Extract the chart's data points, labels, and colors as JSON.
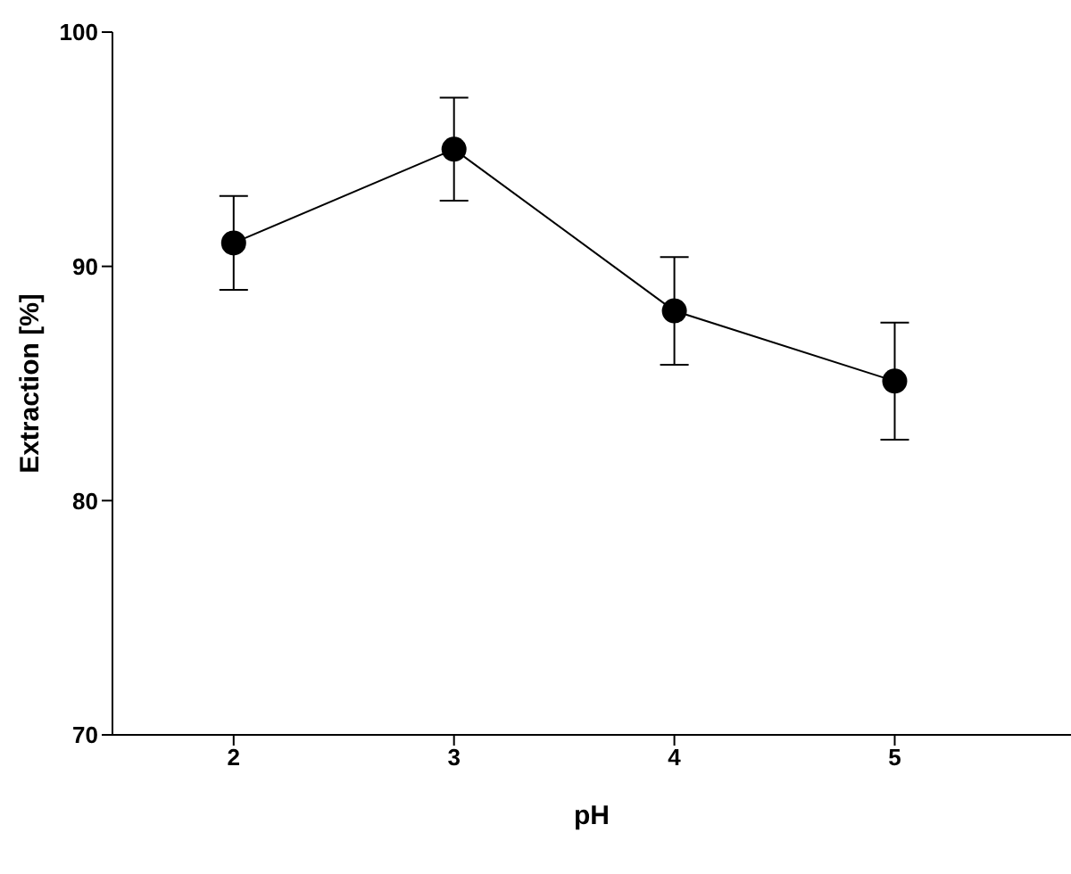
{
  "chart_data": {
    "type": "line",
    "xlabel": "pH",
    "ylabel": "Extraction  [%]",
    "x": [
      2,
      3,
      4,
      5
    ],
    "series": [
      {
        "color": "#000000",
        "values": [
          91,
          95,
          88.1,
          85.1
        ],
        "errors": [
          2,
          2.2,
          2.3,
          2.5
        ]
      }
    ],
    "xlim": [
      1.45,
      5.8
    ],
    "xticks": [
      2,
      3,
      4,
      5
    ],
    "ylim": [
      70,
      100
    ],
    "yticks": [
      70,
      80,
      90,
      100
    ],
    "marker": "circle",
    "line_style": "solid",
    "grid": false,
    "legend": false
  }
}
